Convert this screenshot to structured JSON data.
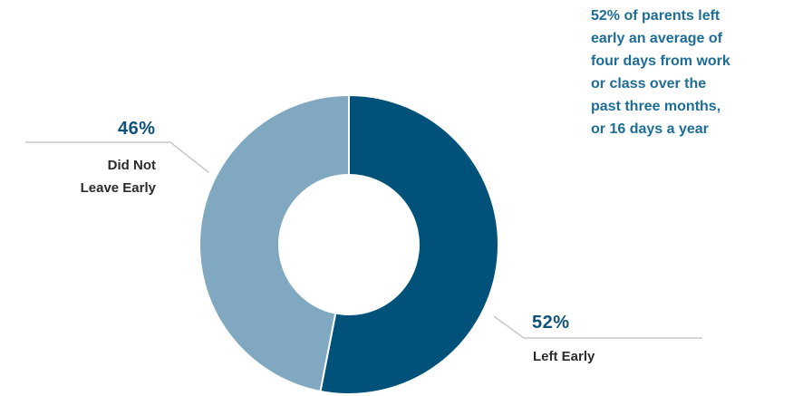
{
  "colors": {
    "left_early": "#00527b",
    "did_not_leave_early": "#80a9c1",
    "leader_line": "#c9c9c9",
    "percent_text": "#0d5279",
    "annotation_text": "#1e6d97"
  },
  "chart_data": {
    "type": "pie",
    "variant": "donut",
    "title": "",
    "slices": [
      {
        "label_lines": [
          "Left Early"
        ],
        "value": 52,
        "value_label": "52%",
        "color": "#00527b"
      },
      {
        "label_lines": [
          "Did Not",
          "Leave Early"
        ],
        "value": 46,
        "value_label": "46%",
        "color": "#80a9c1"
      }
    ],
    "annotation": "52% of parents left\nearly an average of\nfour days from work\nor class over the\npast three months,\nor 16 days a year"
  }
}
